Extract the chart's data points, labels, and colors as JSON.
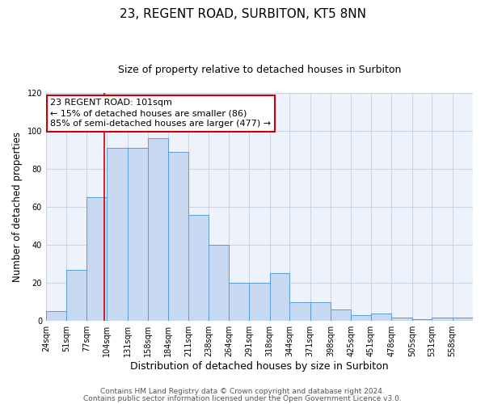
{
  "title": "23, REGENT ROAD, SURBITON, KT5 8NN",
  "subtitle": "Size of property relative to detached houses in Surbiton",
  "xlabel": "Distribution of detached houses by size in Surbiton",
  "ylabel": "Number of detached properties",
  "bin_labels": [
    "24sqm",
    "51sqm",
    "77sqm",
    "104sqm",
    "131sqm",
    "158sqm",
    "184sqm",
    "211sqm",
    "238sqm",
    "264sqm",
    "291sqm",
    "318sqm",
    "344sqm",
    "371sqm",
    "398sqm",
    "425sqm",
    "451sqm",
    "478sqm",
    "505sqm",
    "531sqm",
    "558sqm"
  ],
  "bin_edges": [
    24,
    51,
    77,
    104,
    131,
    158,
    184,
    211,
    238,
    264,
    291,
    318,
    344,
    371,
    398,
    425,
    451,
    478,
    505,
    531,
    558,
    585
  ],
  "bar_heights": [
    5,
    27,
    65,
    91,
    91,
    96,
    89,
    56,
    40,
    20,
    20,
    25,
    10,
    10,
    6,
    3,
    4,
    2,
    1,
    2,
    2
  ],
  "bar_color": "#c6d9f1",
  "bar_edge_color": "#5b9bd5",
  "ylim": [
    0,
    120
  ],
  "yticks": [
    0,
    20,
    40,
    60,
    80,
    100,
    120
  ],
  "grid_color": "#c8d4e8",
  "bg_color": "#eef2fa",
  "property_line_x": 101,
  "property_line_color": "#cc0000",
  "annotation_line1": "23 REGENT ROAD: 101sqm",
  "annotation_line2": "← 15% of detached houses are smaller (86)",
  "annotation_line3": "85% of semi-detached houses are larger (477) →",
  "annotation_box_edge_color": "#cc0000",
  "footer_line1": "Contains HM Land Registry data © Crown copyright and database right 2024.",
  "footer_line2": "Contains public sector information licensed under the Open Government Licence v3.0.",
  "title_fontsize": 11,
  "subtitle_fontsize": 9,
  "xlabel_fontsize": 9,
  "ylabel_fontsize": 8.5,
  "tick_fontsize": 7,
  "annotation_fontsize": 8,
  "footer_fontsize": 6.5
}
